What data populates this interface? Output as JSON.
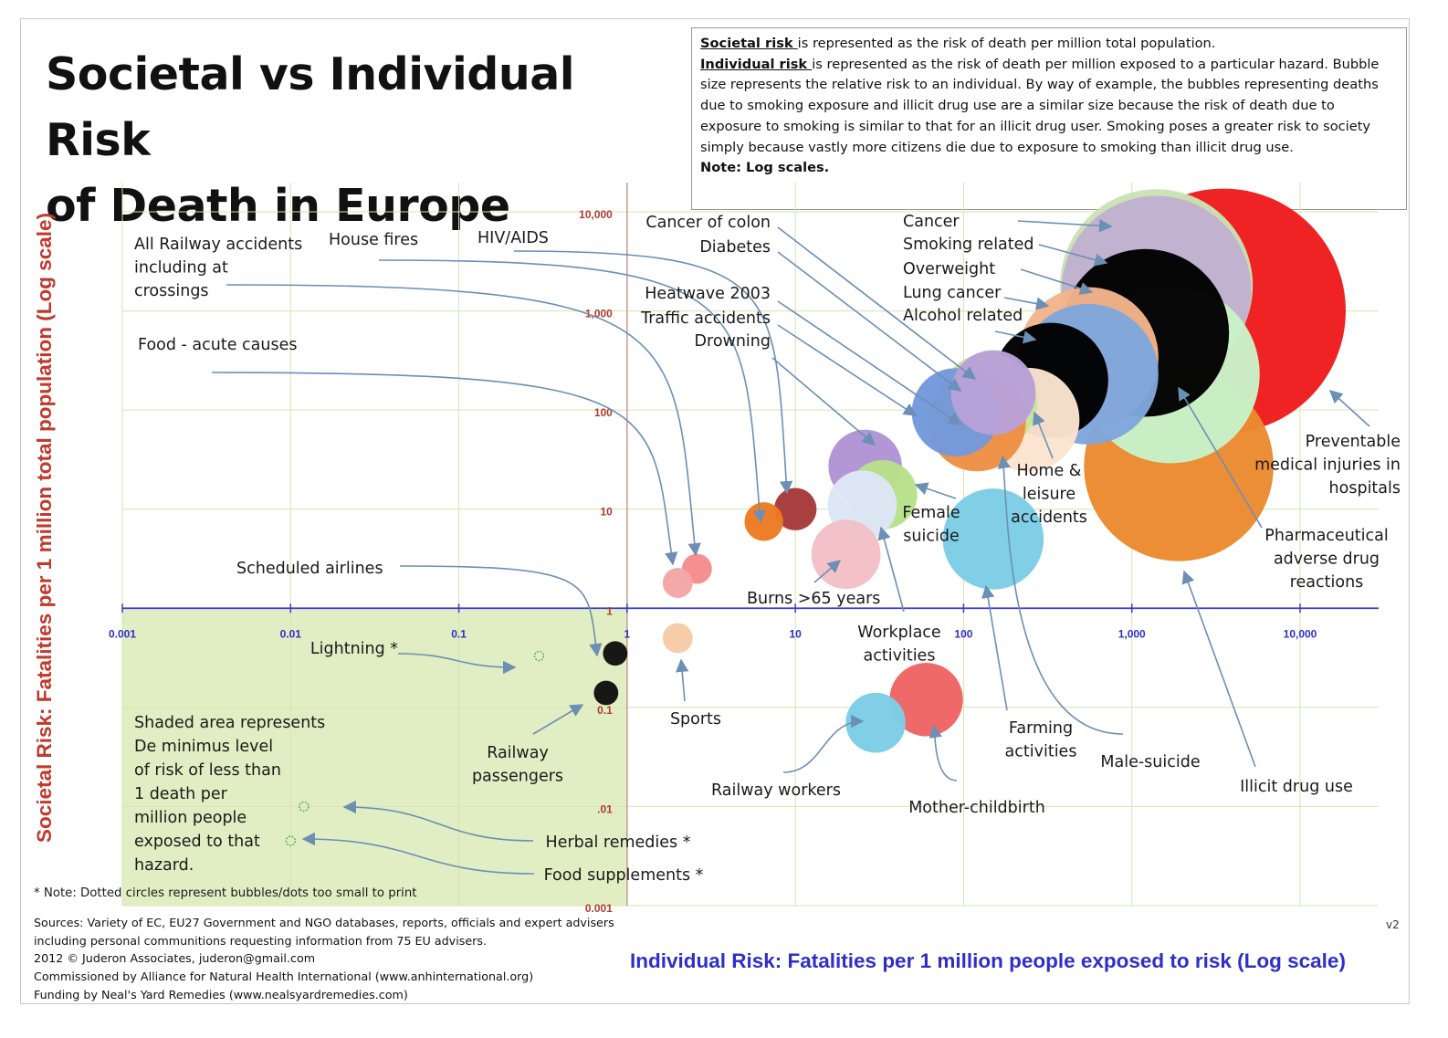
{
  "title_lines": [
    "Societal vs Individual Risk",
    "of Death in Europe"
  ],
  "note_box": {
    "societal_term": "Societal risk ",
    "societal_text": "is represented as the risk of death per million total population.",
    "individual_term": "Individual risk ",
    "individual_text": "is represented as the risk of death per million exposed to a particular hazard. Bubble size represents the relative risk to an individual. By way of example, the bubbles representing deaths due to smoking exposure and illicit drug use are a similar size because the risk of death due to exposure to smoking is similar to that for an illicit drug user. Smoking poses a greater risk to society simply because vastly more citizens die due to exposure to smoking than illicit drug use.",
    "log_note": "Note: Log scales."
  },
  "shaded_note_lines": [
    "Shaded area represents",
    "De minimus level",
    "of risk of less than",
    "1 death per",
    "million people",
    "exposed to that",
    "hazard."
  ],
  "dotted_note": "* Note: Dotted circles represent bubbles/dots too small to print",
  "sources_lines": [
    "Sources: Variety of EC, EU27 Government and NGO databases, reports, officials and expert advisers",
    "including personal communitions requesting information from 75 EU advisers.",
    "2012 © Juderon Associates, juderon@gmail.com",
    "Commissioned by Alliance for Natural Health International (www.anhinternational.org)",
    "Funding by Neal's Yard Remedies (www.nealsyardremedies.com)"
  ],
  "version": "v2",
  "colors": {
    "x_axis": "#3a3ad0",
    "x_ticks": "#2f2fc8",
    "y_ticks": "#b03a2e",
    "y_axis": "#c89a90",
    "grid": "#d6e4b0",
    "shade": "#dcebb8",
    "arrow": "#6b8fb5"
  },
  "chart_data": {
    "type": "scatter",
    "subtype": "bubble",
    "xscale": "log",
    "yscale": "log",
    "xlabel": "Individual Risk: Fatalities per 1 million people exposed to risk (Log scale)",
    "ylabel": "Societal Risk: Fatalities per 1 million total population (Log scale)",
    "xlim": [
      0.001,
      10000
    ],
    "ylim": [
      0.001,
      10000
    ],
    "x_ticks": [
      "0.001",
      "0.01",
      "0.1",
      "1",
      "10",
      "100",
      "1,000",
      "10,000"
    ],
    "y_ticks": [
      "10,000",
      "1,000",
      "100",
      "10",
      "1",
      "0.1",
      ".01",
      "0.001"
    ],
    "grid": true,
    "shaded_region": {
      "x": [
        0.001,
        1
      ],
      "y": [
        0.001,
        1
      ]
    },
    "points": [
      {
        "label": "Preventable medical injuries in hospitals",
        "x": 3500,
        "y": 1000,
        "size": 1.0,
        "color": "#ee1c1c",
        "shape": "solid"
      },
      {
        "label": "Cancer",
        "x": 1400,
        "y": 1800,
        "size": 0.62,
        "color": "#c9e2b4",
        "shape": "solid"
      },
      {
        "label": "Smoking related",
        "x": 1400,
        "y": 1600,
        "size": 0.6,
        "color": "#c0b1cf",
        "shape": "solid"
      },
      {
        "label": "Overweight",
        "x": 1200,
        "y": 600,
        "size": 0.47,
        "color": "#000000",
        "shape": "solid"
      },
      {
        "label": "Illicit drug use",
        "x": 1900,
        "y": 27,
        "size": 0.6,
        "color": "#ea8a2e",
        "shape": "solid"
      },
      {
        "label": "Pharmaceutical adverse drug reactions",
        "x": 1700,
        "y": 230,
        "size": 0.53,
        "color": "#c8f2c8",
        "shape": "solid"
      },
      {
        "label": "Lung cancer",
        "x": 550,
        "y": 340,
        "size": 0.33,
        "color": "#f4b48a",
        "shape": "solid"
      },
      {
        "label": "Alcohol related",
        "x": 550,
        "y": 230,
        "size": 0.33,
        "color": "#7fa6dc",
        "shape": "solid"
      },
      {
        "label": "Home & leisure accidents",
        "x": 330,
        "y": 200,
        "size": 0.22,
        "color": "#000000",
        "shape": "solid"
      },
      {
        "label": "Male-suicide",
        "x": 240,
        "y": 80,
        "size": 0.18,
        "color": "#fbe4d0",
        "shape": "solid"
      },
      {
        "label": "Cancer of colon",
        "x": 150,
        "y": 150,
        "size": 0.12,
        "color": "#b8a0d8",
        "shape": "solid"
      },
      {
        "label": "Diabetes",
        "x": 140,
        "y": 120,
        "size": 0.16,
        "color": "#c6e39c",
        "shape": "solid"
      },
      {
        "label": "Heatwave 2003",
        "x": 120,
        "y": 75,
        "size": 0.16,
        "color": "#ee8e44",
        "shape": "solid"
      },
      {
        "label": "Traffic accidents",
        "x": 90,
        "y": 95,
        "size": 0.13,
        "color": "#7399db",
        "shape": "solid"
      },
      {
        "label": "Farming activities",
        "x": 150,
        "y": 5,
        "size": 0.17,
        "color": "#7ccde6",
        "shape": "solid"
      },
      {
        "label": "Drowning",
        "x": 26,
        "y": 27,
        "size": 0.09,
        "color": "#b093d4",
        "shape": "solid"
      },
      {
        "label": "Female suicide",
        "x": 33,
        "y": 14,
        "size": 0.08,
        "color": "#b8e08a",
        "shape": "solid"
      },
      {
        "label": "Workplace activities",
        "x": 25,
        "y": 11,
        "size": 0.08,
        "color": "#dde6f6",
        "shape": "solid"
      },
      {
        "label": "Burns >65 years",
        "x": 20,
        "y": 3.5,
        "size": 0.08,
        "color": "#f2c0c6",
        "shape": "solid"
      },
      {
        "label": "HIV/AIDS",
        "x": 10,
        "y": 10,
        "size": 0.03,
        "color": "#a53a3a",
        "shape": "solid"
      },
      {
        "label": "House fires",
        "x": 6.5,
        "y": 7.5,
        "size": 0.025,
        "color": "#ee7a22",
        "shape": "solid"
      },
      {
        "label": "Food - acute causes",
        "x": 2.6,
        "y": 2.5,
        "size": 0.015,
        "color": "#f48c8c",
        "shape": "solid"
      },
      {
        "label": "All Railway accidents including at crossings",
        "x": 2,
        "y": 1.8,
        "size": 0.015,
        "color": "#f4a6a6",
        "shape": "solid"
      },
      {
        "label": "Sports",
        "x": 2,
        "y": 0.5,
        "size": 0.015,
        "color": "#f6caa6",
        "shape": "solid"
      },
      {
        "label": "Mother-childbirth",
        "x": 60,
        "y": 0.12,
        "size": 0.09,
        "color": "#ef6464",
        "shape": "solid"
      },
      {
        "label": "Railway workers",
        "x": 30,
        "y": 0.07,
        "size": 0.06,
        "color": "#7ccde6",
        "shape": "solid"
      },
      {
        "label": "Scheduled airlines",
        "x": 0.85,
        "y": 0.35,
        "size": 0.01,
        "color": "#111111",
        "shape": "solid"
      },
      {
        "label": "Railway passengers",
        "x": 0.75,
        "y": 0.14,
        "size": 0.01,
        "color": "#111111",
        "shape": "solid"
      },
      {
        "label": "Lightning *",
        "x": 0.3,
        "y": 0.33,
        "size": 0.02,
        "color": "#4caf50",
        "shape": "dotted"
      },
      {
        "label": "Herbal remedies *",
        "x": 0.012,
        "y": 0.01,
        "size": 0.02,
        "color": "#4caf50",
        "shape": "dotted"
      },
      {
        "label": "Food supplements *",
        "x": 0.01,
        "y": 0.0045,
        "size": 0.02,
        "color": "#4caf50",
        "shape": "dotted"
      }
    ]
  }
}
